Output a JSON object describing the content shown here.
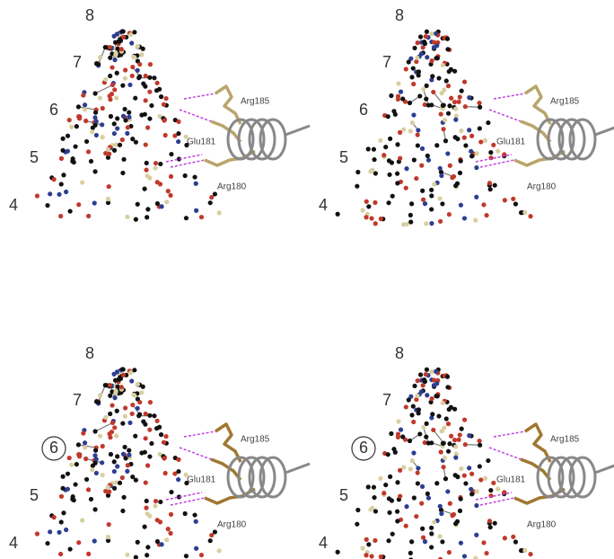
{
  "panels": [
    {
      "levels": [
        "8",
        "7",
        "6",
        "5",
        "4"
      ],
      "residues": [
        "Arg185",
        "Glu181",
        "Arg180"
      ]
    },
    {
      "levels": [
        "8",
        "7",
        "6",
        "5",
        "4"
      ],
      "residues": [
        "Arg185",
        "Glu181",
        "Arg180"
      ]
    },
    {
      "levels": [
        "8",
        "7",
        "6",
        "5",
        "4"
      ],
      "residues": [
        "Arg185",
        "Glu181",
        "Arg180"
      ]
    },
    {
      "levels": [
        "8",
        "7",
        "6",
        "5",
        "4"
      ],
      "residues": [
        "Arg185",
        "Glu181",
        "Arg180"
      ]
    }
  ]
}
